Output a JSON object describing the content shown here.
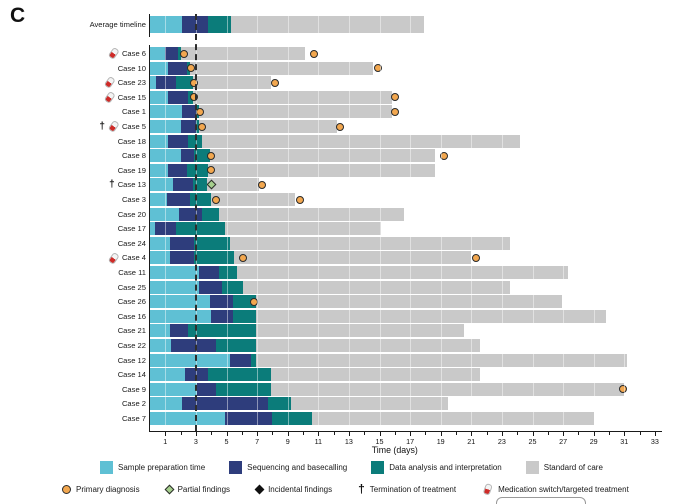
{
  "panel_label": "C",
  "colors": {
    "sample_preparation": "#5fc0d4",
    "sequencing_basecalling": "#2e3d7c",
    "data_analysis": "#0b7c7a",
    "standard_of_care": "#c9c9c9",
    "primary_diagnosis_fill": "#f2a74f",
    "partial_findings_fill": "#a6cf8d",
    "incidental_findings_fill": "#111111",
    "pill_red": "#cf2b28"
  },
  "legend_segments": [
    {
      "name": "sample-preparation",
      "label": "Sample preparation time",
      "color": "#5fc0d4"
    },
    {
      "name": "sequencing-basecalling",
      "label": "Sequencing and basecalling",
      "color": "#2e3d7c"
    },
    {
      "name": "data-analysis",
      "label": "Data analysis and interpretation",
      "color": "#0b7c7a"
    },
    {
      "name": "standard-of-care",
      "label": "Standard of care",
      "color": "#c9c9c9"
    }
  ],
  "legend_markers": [
    {
      "name": "primary-diagnosis",
      "label": "Primary diagnosis",
      "glyph": "orange-circle"
    },
    {
      "name": "partial-findings",
      "label": "Partial findings",
      "glyph": "green-diamond"
    },
    {
      "name": "incidental-findings",
      "label": "Incidental findings",
      "glyph": "black-diamond"
    },
    {
      "name": "termination-of-treatment",
      "label": "Termination of treatment",
      "glyph": "dagger"
    },
    {
      "name": "medication-switch",
      "label": "Medication switch/targeted treatment",
      "glyph": "red-pill"
    }
  ],
  "chart_data": {
    "type": "bar",
    "subtype": "horizontal-stacked-timeline",
    "xlabel": "Time (days)",
    "xlim": [
      0,
      33
    ],
    "x_ticks": [
      1,
      3,
      5,
      7,
      9,
      11,
      13,
      15,
      17,
      19,
      21,
      23,
      25,
      27,
      29,
      31,
      33
    ],
    "grid": "faint vertical lines at labeled ticks",
    "dashed_reference_day": 3,
    "segment_keys": [
      "sample_preparation",
      "sequencing_basecalling",
      "data_analysis",
      "standard_of_care"
    ],
    "note": "ends = cumulative day at which each segment finishes; markers d = day position",
    "rows": [
      {
        "label": "Average timeline",
        "avg": true,
        "ends": [
          2.1,
          3.8,
          5.3,
          17.9
        ],
        "markers": [],
        "icons": []
      },
      {
        "label": "Case 6",
        "ends": [
          1.0,
          1.8,
          2.0,
          10.1
        ],
        "markers": [
          {
            "t": "pd",
            "d": 2.2
          },
          {
            "t": "pd",
            "d": 10.7
          }
        ],
        "icons": [
          "pill"
        ]
      },
      {
        "label": "Case 10",
        "ends": [
          1.2,
          2.4,
          2.6,
          14.6
        ],
        "markers": [
          {
            "t": "pd",
            "d": 2.7
          },
          {
            "t": "pd",
            "d": 14.9
          }
        ],
        "icons": []
      },
      {
        "label": "Case 23",
        "ends": [
          0.4,
          1.7,
          2.8,
          7.9
        ],
        "markers": [
          {
            "t": "pd",
            "d": 2.9
          },
          {
            "t": "pd",
            "d": 8.2
          }
        ],
        "icons": [
          "pill"
        ]
      },
      {
        "label": "Case 15",
        "ends": [
          1.2,
          2.5,
          2.8,
          15.8
        ],
        "markers": [
          {
            "t": "pd",
            "d": 2.9
          },
          {
            "t": "pd",
            "d": 16.0
          }
        ],
        "icons": [
          "pill"
        ]
      },
      {
        "label": "Case 1",
        "ends": [
          2.1,
          3.0,
          3.2,
          15.8
        ],
        "markers": [
          {
            "t": "pd",
            "d": 3.3
          },
          {
            "t": "pd",
            "d": 16.0
          }
        ],
        "icons": []
      },
      {
        "label": "Case 5",
        "ends": [
          2.0,
          3.0,
          3.2,
          12.2
        ],
        "markers": [
          {
            "t": "pd",
            "d": 3.4
          },
          {
            "t": "pd",
            "d": 12.4
          }
        ],
        "icons": [
          "dagger",
          "pill"
        ]
      },
      {
        "label": "Case 18",
        "ends": [
          1.2,
          2.5,
          3.4,
          24.2
        ],
        "markers": [],
        "icons": []
      },
      {
        "label": "Case 8",
        "ends": [
          2.0,
          2.9,
          3.9,
          18.6
        ],
        "markers": [
          {
            "t": "pd",
            "d": 4.0
          },
          {
            "t": "pd",
            "d": 19.2
          }
        ],
        "icons": []
      },
      {
        "label": "Case 19",
        "ends": [
          1.2,
          2.4,
          3.8,
          18.6
        ],
        "markers": [
          {
            "t": "pd",
            "d": 4.0
          }
        ],
        "icons": []
      },
      {
        "label": "Case 13",
        "ends": [
          1.5,
          2.8,
          3.7,
          7.1
        ],
        "markers": [
          {
            "t": "pf",
            "d": 4.0
          },
          {
            "t": "pd",
            "d": 7.3
          }
        ],
        "icons": [
          "dagger"
        ]
      },
      {
        "label": "Case 3",
        "ends": [
          1.1,
          2.6,
          4.0,
          9.5
        ],
        "markers": [
          {
            "t": "pd",
            "d": 4.3
          },
          {
            "t": "pd",
            "d": 9.8
          }
        ],
        "icons": []
      },
      {
        "label": "Case 20",
        "ends": [
          1.9,
          3.4,
          4.5,
          16.6
        ],
        "markers": [],
        "icons": []
      },
      {
        "label": "Case 17",
        "ends": [
          0.3,
          1.7,
          4.9,
          15.1
        ],
        "markers": [],
        "icons": []
      },
      {
        "label": "Case 24",
        "ends": [
          1.3,
          2.9,
          5.2,
          23.5
        ],
        "markers": [],
        "icons": []
      },
      {
        "label": "Case 4",
        "ends": [
          1.3,
          2.9,
          5.5,
          21.0
        ],
        "markers": [
          {
            "t": "pd",
            "d": 6.1
          },
          {
            "t": "pd",
            "d": 21.3
          }
        ],
        "icons": [
          "pill"
        ]
      },
      {
        "label": "Case 11",
        "ends": [
          3.2,
          4.5,
          5.7,
          27.3
        ],
        "markers": [],
        "icons": []
      },
      {
        "label": "Case 25",
        "ends": [
          3.2,
          4.7,
          6.1,
          23.5
        ],
        "markers": [],
        "icons": []
      },
      {
        "label": "Case 26",
        "ends": [
          3.9,
          5.4,
          6.9,
          26.9
        ],
        "markers": [
          {
            "t": "pd",
            "d": 6.8
          }
        ],
        "icons": []
      },
      {
        "label": "Case 16",
        "ends": [
          4.0,
          5.4,
          6.9,
          29.8
        ],
        "markers": [],
        "icons": []
      },
      {
        "label": "Case 21",
        "ends": [
          1.3,
          2.5,
          6.9,
          20.5
        ],
        "markers": [],
        "icons": []
      },
      {
        "label": "Case 22",
        "ends": [
          1.4,
          4.3,
          6.9,
          21.6
        ],
        "markers": [],
        "icons": []
      },
      {
        "label": "Case 12",
        "ends": [
          5.2,
          6.6,
          6.9,
          31.2
        ],
        "markers": [],
        "icons": []
      },
      {
        "label": "Case 14",
        "ends": [
          2.3,
          3.8,
          7.9,
          21.6
        ],
        "markers": [],
        "icons": []
      },
      {
        "label": "Case 9",
        "ends": [
          3.1,
          4.3,
          7.9,
          31.0
        ],
        "markers": [
          {
            "t": "pd",
            "d": 30.9
          }
        ],
        "icons": []
      },
      {
        "label": "Case 2",
        "ends": [
          2.1,
          7.7,
          9.2,
          19.5
        ],
        "markers": [],
        "icons": []
      },
      {
        "label": "Case 7",
        "ends": [
          4.9,
          8.0,
          10.6,
          29.0
        ],
        "markers": [],
        "icons": []
      }
    ]
  }
}
